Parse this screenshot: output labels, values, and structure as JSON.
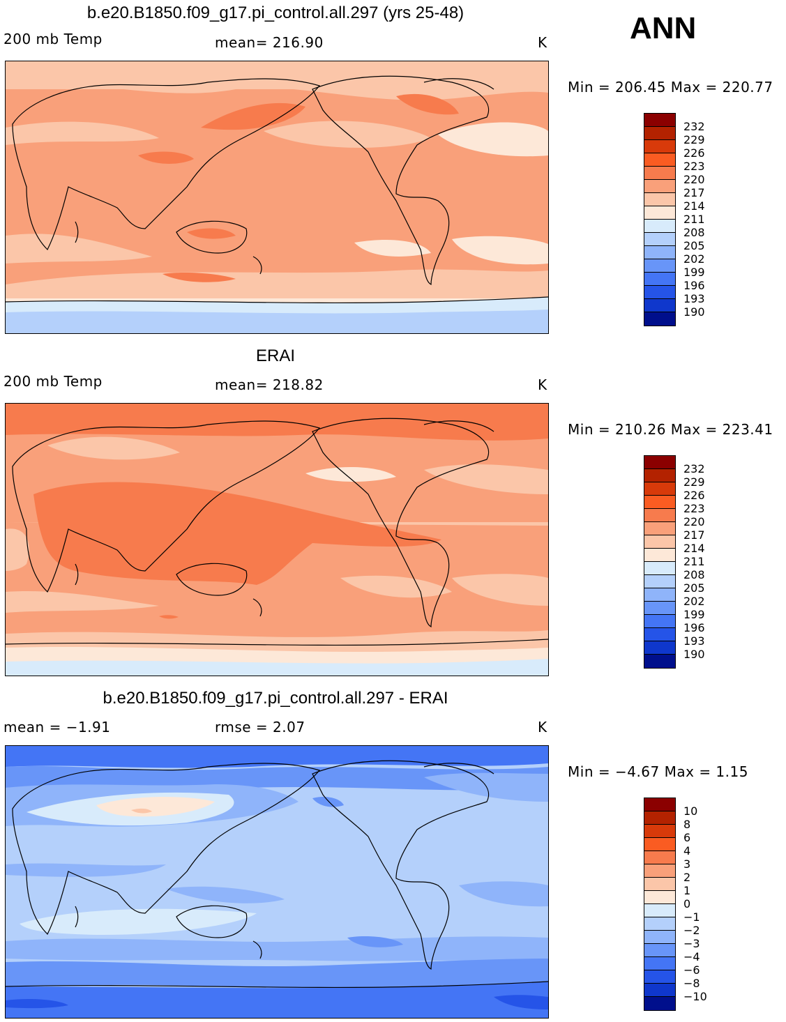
{
  "season": "ANN",
  "panels": [
    {
      "title": "b.e20.B1850.f09_g17.pi_control.all.297 (yrs 25-48)",
      "left_label": "200 mb Temp",
      "stat_label": "mean=  216.90",
      "units": "K",
      "minmax": "Min = 206.45 Max = 220.77",
      "colorbar_labels": [
        "232",
        "229",
        "226",
        "223",
        "220",
        "217",
        "214",
        "211",
        "208",
        "205",
        "202",
        "199",
        "196",
        "193",
        "190"
      ]
    },
    {
      "title": "ERAI",
      "left_label": "200 mb Temp",
      "stat_label": "mean=  218.82",
      "units": "K",
      "minmax": "Min = 210.26 Max = 223.41",
      "colorbar_labels": [
        "232",
        "229",
        "226",
        "223",
        "220",
        "217",
        "214",
        "211",
        "208",
        "205",
        "202",
        "199",
        "196",
        "193",
        "190"
      ]
    },
    {
      "title": "b.e20.B1850.f09_g17.pi_control.all.297 - ERAI",
      "left_label": "mean =   −1.91",
      "stat_label": "rmse =    2.07",
      "units": "K",
      "minmax": "Min =  −4.67 Max =    1.15",
      "colorbar_labels": [
        "10",
        "8",
        "6",
        "4",
        "3",
        "2",
        "1",
        "0",
        "−1",
        "−2",
        "−3",
        "−4",
        "−6",
        "−8",
        "−10"
      ]
    }
  ],
  "colors": {
    "colorbar": [
      "#8b0000",
      "#b32200",
      "#d83a0a",
      "#fa5c22",
      "#f77b4d",
      "#f9a07a",
      "#fbc6a9",
      "#fde8d8",
      "#d8ebfb",
      "#b4d0fb",
      "#8fb4fa",
      "#6895f8",
      "#4475f5",
      "#2554e8",
      "#0f37cc",
      "#000f8c"
    ],
    "diff_colorbar": [
      "#8b0000",
      "#b32200",
      "#d83a0a",
      "#fa5c22",
      "#f77b4d",
      "#f9a07a",
      "#fbc6a9",
      "#fde8d8",
      "#d8ebfb",
      "#b4d0fb",
      "#8fb4fa",
      "#6895f8",
      "#4475f5",
      "#2554e8",
      "#0f37cc",
      "#000f8c"
    ]
  }
}
